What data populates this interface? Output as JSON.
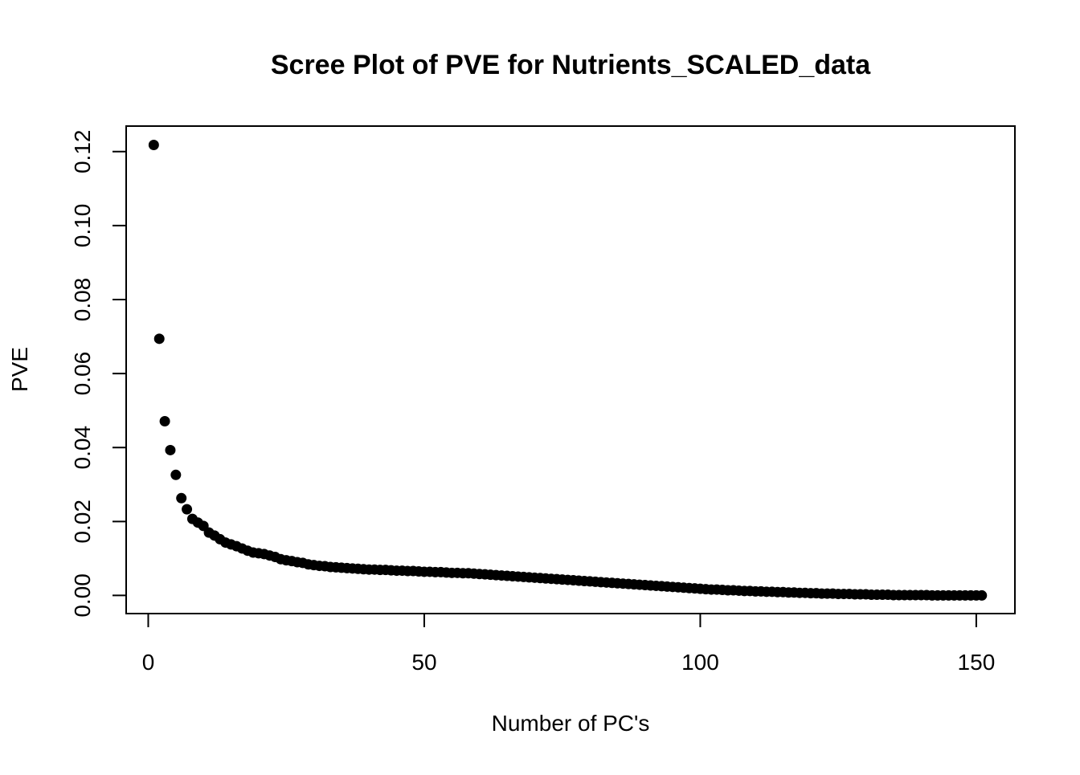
{
  "chart_data": {
    "type": "scatter",
    "title": "Scree Plot of PVE for Nutrients_SCALED_data",
    "xlabel": "Number of PC's",
    "ylabel": "PVE",
    "xlim": [
      -4,
      157
    ],
    "ylim": [
      -0.0049,
      0.1269
    ],
    "x_ticks": [
      0,
      50,
      100,
      150
    ],
    "x_tick_labels": [
      "0",
      "50",
      "100",
      "150"
    ],
    "y_ticks": [
      0,
      0.02,
      0.04,
      0.06,
      0.08,
      0.1,
      0.12
    ],
    "y_tick_labels": [
      "0.00",
      "0.02",
      "0.04",
      "0.06",
      "0.08",
      "0.10",
      "0.12"
    ],
    "grid": false,
    "legend": "none",
    "point_color": "#000000",
    "x": [
      1,
      2,
      3,
      4,
      5,
      6,
      7,
      8,
      9,
      10,
      11,
      12,
      13,
      14,
      15,
      16,
      17,
      18,
      19,
      20,
      21,
      22,
      23,
      24,
      25,
      26,
      27,
      28,
      29,
      30,
      31,
      32,
      33,
      34,
      35,
      36,
      37,
      38,
      39,
      40,
      41,
      42,
      43,
      44,
      45,
      46,
      47,
      48,
      49,
      50,
      51,
      52,
      53,
      54,
      55,
      56,
      57,
      58,
      59,
      60,
      61,
      62,
      63,
      64,
      65,
      66,
      67,
      68,
      69,
      70,
      71,
      72,
      73,
      74,
      75,
      76,
      77,
      78,
      79,
      80,
      81,
      82,
      83,
      84,
      85,
      86,
      87,
      88,
      89,
      90,
      91,
      92,
      93,
      94,
      95,
      96,
      97,
      98,
      99,
      100,
      101,
      102,
      103,
      104,
      105,
      106,
      107,
      108,
      109,
      110,
      111,
      112,
      113,
      114,
      115,
      116,
      117,
      118,
      119,
      120,
      121,
      122,
      123,
      124,
      125,
      126,
      127,
      128,
      129,
      130,
      131,
      132,
      133,
      134,
      135,
      136,
      137,
      138,
      139,
      140,
      141,
      142,
      143,
      144,
      145,
      146,
      147,
      148,
      149,
      150,
      151
    ],
    "y": [
      0.1218,
      0.0694,
      0.0471,
      0.0393,
      0.0326,
      0.0263,
      0.0233,
      0.0207,
      0.0197,
      0.0188,
      0.017,
      0.0162,
      0.0152,
      0.0143,
      0.0138,
      0.0133,
      0.0127,
      0.0121,
      0.0116,
      0.0114,
      0.0112,
      0.0108,
      0.0104,
      0.0098,
      0.0095,
      0.0093,
      0.009,
      0.0088,
      0.0084,
      0.0082,
      0.008,
      0.0079,
      0.0077,
      0.0076,
      0.0075,
      0.0074,
      0.0073,
      0.0072,
      0.0071,
      0.007,
      0.007,
      0.0069,
      0.0069,
      0.0068,
      0.0067,
      0.0067,
      0.0066,
      0.0066,
      0.0065,
      0.0064,
      0.0064,
      0.0063,
      0.0063,
      0.0062,
      0.0061,
      0.0061,
      0.006,
      0.006,
      0.0059,
      0.0058,
      0.0057,
      0.0056,
      0.0055,
      0.0054,
      0.0053,
      0.0052,
      0.0051,
      0.005,
      0.0049,
      0.0048,
      0.0047,
      0.0046,
      0.0045,
      0.0044,
      0.0043,
      0.0042,
      0.0041,
      0.004,
      0.0039,
      0.0038,
      0.0037,
      0.0036,
      0.0035,
      0.0034,
      0.0033,
      0.0032,
      0.0031,
      0.003,
      0.0029,
      0.0028,
      0.0027,
      0.0026,
      0.0025,
      0.0024,
      0.0023,
      0.0022,
      0.0021,
      0.002,
      0.0019,
      0.0018,
      0.0017,
      0.0016,
      0.0016,
      0.0015,
      0.0014,
      0.0014,
      0.0013,
      0.0012,
      0.0012,
      0.0011,
      0.0011,
      0.001,
      0.001,
      0.0009,
      0.0009,
      0.0008,
      0.0008,
      0.0007,
      0.0007,
      0.0006,
      0.0006,
      0.0005,
      0.0005,
      0.0005,
      0.0004,
      0.0004,
      0.0004,
      0.0003,
      0.0003,
      0.0003,
      0.0002,
      0.0002,
      0.0002,
      0.0002,
      0.0001,
      0.0001,
      0.0001,
      0.0001,
      0.0001,
      0.0001,
      0.0001,
      0.0,
      0.0,
      0.0,
      0.0,
      0.0,
      0.0,
      0.0,
      0.0,
      0.0,
      0.0
    ]
  }
}
